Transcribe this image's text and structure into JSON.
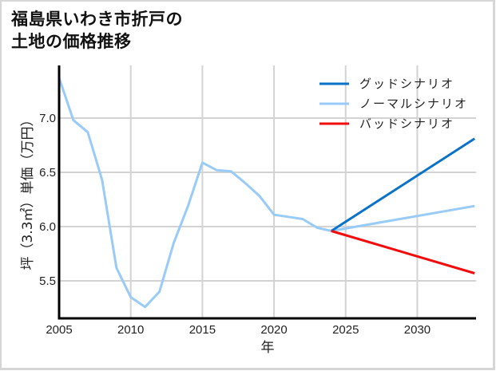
{
  "title": {
    "line1": "福島県いわき市折戸の",
    "line2": "土地の価格推移"
  },
  "colors": {
    "good": "#0a72c8",
    "normal": "#99cbf8",
    "bad": "#f20d0d",
    "grid": "#d3d3d3",
    "axis": "#000000",
    "frame": "#d6d6d6"
  },
  "chart_data": {
    "type": "line",
    "title": "福島県いわき市折戸の土地の価格推移",
    "xlabel": "年",
    "ylabel": "坪（3.3㎡）単価（万円）",
    "xlim": [
      2005,
      2034
    ],
    "ylim": [
      5.155,
      7.485
    ],
    "x_ticks": [
      2005,
      2010,
      2015,
      2020,
      2025,
      2030
    ],
    "y_ticks": [
      5.5,
      6.0,
      6.5,
      7.0
    ],
    "y_tick_labels": [
      "5.5",
      "6.0",
      "6.5",
      "7.0"
    ],
    "grid": true,
    "legend_position": "upper right",
    "series": [
      {
        "name": "グッドシナリオ",
        "color": "#0a72c8",
        "x": [
          2024,
          2034
        ],
        "values": [
          5.96,
          6.81
        ]
      },
      {
        "name": "ノーマルシナリオ",
        "color": "#99cbf8",
        "x": [
          2005,
          2006,
          2007,
          2008,
          2009,
          2010,
          2011,
          2012,
          2013,
          2014,
          2015,
          2016,
          2017,
          2018,
          2019,
          2020,
          2021,
          2022,
          2023,
          2024,
          2034
        ],
        "values": [
          7.37,
          6.98,
          6.87,
          6.43,
          5.62,
          5.35,
          5.26,
          5.4,
          5.85,
          6.19,
          6.59,
          6.52,
          6.51,
          6.4,
          6.28,
          6.11,
          6.09,
          6.07,
          5.99,
          5.96,
          6.19
        ]
      },
      {
        "name": "バッドシナリオ",
        "color": "#f20d0d",
        "x": [
          2024,
          2034
        ],
        "values": [
          5.96,
          5.57
        ]
      }
    ]
  },
  "axes": {
    "xlabel": "年",
    "ylabel": "坪（3.3㎡）単価（万円）",
    "x_tick_labels": [
      "2005",
      "2010",
      "2015",
      "2020",
      "2025",
      "2030"
    ],
    "y_tick_labels": [
      "5.5",
      "6.0",
      "6.5",
      "7.0"
    ]
  },
  "legend": {
    "items": [
      {
        "label": "グッドシナリオ",
        "color": "#0a72c8"
      },
      {
        "label": "ノーマルシナリオ",
        "color": "#99cbf8"
      },
      {
        "label": "バッドシナリオ",
        "color": "#f20d0d"
      }
    ]
  }
}
